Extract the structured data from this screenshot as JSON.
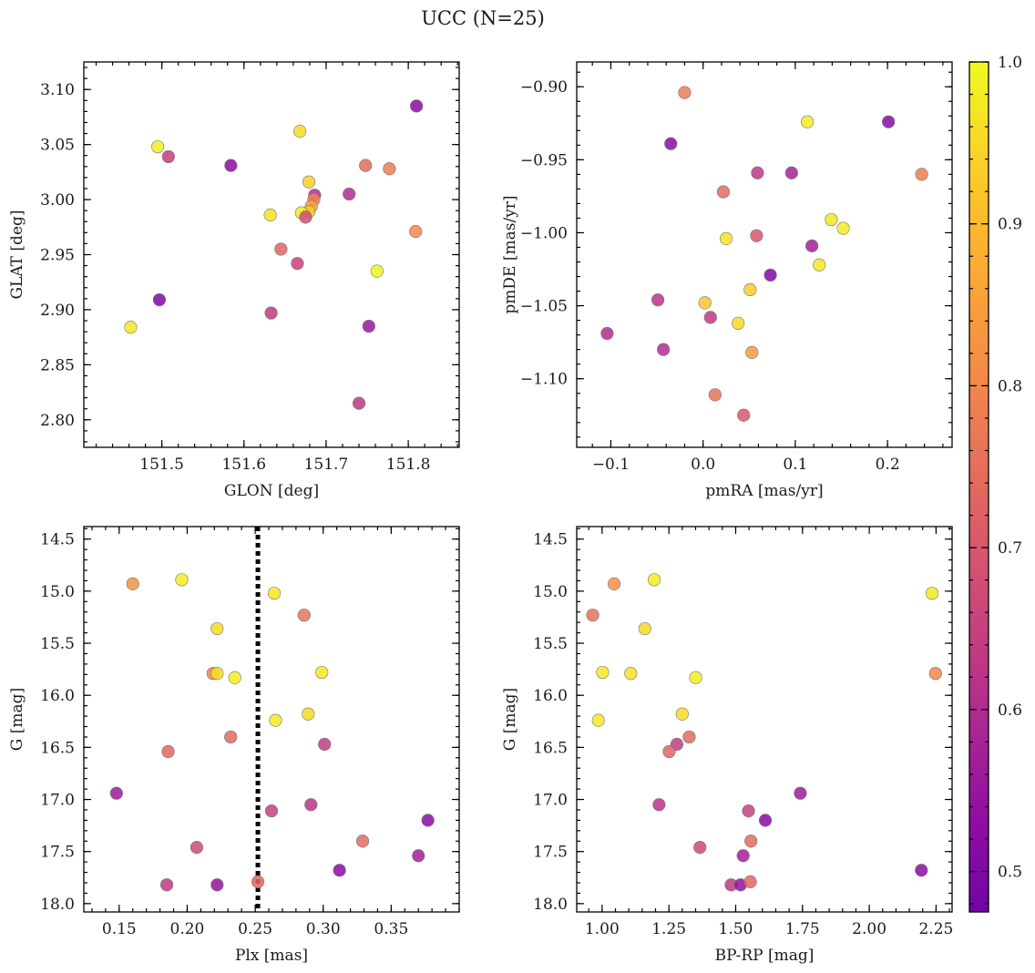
{
  "suptitle": "UCC (N=25)",
  "colorbar": {
    "min": 0.475,
    "max": 1.0,
    "ticks": [
      0.5,
      0.6,
      0.7,
      0.8,
      0.9,
      1.0
    ],
    "tick_labels": [
      "0.5",
      "0.6",
      "0.7",
      "0.8",
      "0.9",
      "1.0"
    ],
    "colormap": "plasma-like"
  },
  "chart_data": [
    {
      "type": "scatter",
      "id": "glon-glat",
      "xlabel": "GLON [deg]",
      "ylabel": "GLAT [deg]",
      "xlim": [
        151.405,
        151.862
      ],
      "ylim": [
        2.775,
        3.125
      ],
      "xticks": [
        151.5,
        151.6,
        151.7,
        151.8
      ],
      "xtick_labels": [
        "151.5",
        "151.6",
        "151.7",
        "151.8"
      ],
      "yticks": [
        2.8,
        2.85,
        2.9,
        2.95,
        3.0,
        3.05,
        3.1
      ],
      "ytick_labels": [
        "2.80",
        "2.85",
        "2.90",
        "2.95",
        "3.00",
        "3.05",
        "3.10"
      ],
      "points": [
        {
          "x": 151.81,
          "y": 3.085,
          "c": 0.52
        },
        {
          "x": 151.495,
          "y": 3.048,
          "c": 0.98
        },
        {
          "x": 151.508,
          "y": 3.039,
          "c": 0.64
        },
        {
          "x": 151.584,
          "y": 3.031,
          "c": 0.52
        },
        {
          "x": 151.668,
          "y": 3.062,
          "c": 0.95
        },
        {
          "x": 151.748,
          "y": 3.031,
          "c": 0.74
        },
        {
          "x": 151.777,
          "y": 3.028,
          "c": 0.78
        },
        {
          "x": 151.679,
          "y": 3.016,
          "c": 0.93
        },
        {
          "x": 151.686,
          "y": 3.004,
          "c": 0.6
        },
        {
          "x": 151.728,
          "y": 3.005,
          "c": 0.6
        },
        {
          "x": 151.685,
          "y": 3.0,
          "c": 0.8
        },
        {
          "x": 151.682,
          "y": 2.994,
          "c": 0.85
        },
        {
          "x": 151.679,
          "y": 2.989,
          "c": 0.92
        },
        {
          "x": 151.67,
          "y": 2.988,
          "c": 0.98
        },
        {
          "x": 151.675,
          "y": 2.984,
          "c": 0.68
        },
        {
          "x": 151.632,
          "y": 2.986,
          "c": 0.96
        },
        {
          "x": 151.809,
          "y": 2.971,
          "c": 0.8
        },
        {
          "x": 151.645,
          "y": 2.955,
          "c": 0.73
        },
        {
          "x": 151.665,
          "y": 2.942,
          "c": 0.65
        },
        {
          "x": 151.762,
          "y": 2.935,
          "c": 0.99
        },
        {
          "x": 151.497,
          "y": 2.909,
          "c": 0.5
        },
        {
          "x": 151.633,
          "y": 2.897,
          "c": 0.63
        },
        {
          "x": 151.752,
          "y": 2.885,
          "c": 0.55
        },
        {
          "x": 151.462,
          "y": 2.884,
          "c": 0.97
        },
        {
          "x": 151.74,
          "y": 2.815,
          "c": 0.63
        }
      ]
    },
    {
      "type": "scatter",
      "id": "pmra-pmde",
      "xlabel": "pmRA [mas/yr]",
      "ylabel": "pmDE [mas/yr]",
      "xlim": [
        -0.137,
        0.27
      ],
      "ylim": [
        -1.147,
        -0.883
      ],
      "xticks": [
        -0.1,
        0.0,
        0.1,
        0.2
      ],
      "xtick_labels": [
        "−0.1",
        "0.0",
        "0.1",
        "0.2"
      ],
      "yticks": [
        -1.1,
        -1.05,
        -1.0,
        -0.95,
        -0.9
      ],
      "ytick_labels": [
        "−1.10",
        "−1.05",
        "−1.00",
        "−0.95",
        "−0.90"
      ],
      "points": [
        {
          "x": -0.02,
          "y": -0.904,
          "c": 0.78
        },
        {
          "x": 0.113,
          "y": -0.924,
          "c": 0.98
        },
        {
          "x": 0.201,
          "y": -0.924,
          "c": 0.52
        },
        {
          "x": -0.035,
          "y": -0.939,
          "c": 0.52
        },
        {
          "x": 0.059,
          "y": -0.959,
          "c": 0.63
        },
        {
          "x": 0.096,
          "y": -0.959,
          "c": 0.58
        },
        {
          "x": 0.237,
          "y": -0.96,
          "c": 0.78
        },
        {
          "x": 0.022,
          "y": -0.972,
          "c": 0.74
        },
        {
          "x": 0.139,
          "y": -0.991,
          "c": 0.97
        },
        {
          "x": 0.152,
          "y": -0.997,
          "c": 0.98
        },
        {
          "x": 0.058,
          "y": -1.002,
          "c": 0.7
        },
        {
          "x": 0.025,
          "y": -1.004,
          "c": 0.96
        },
        {
          "x": 0.118,
          "y": -1.009,
          "c": 0.57
        },
        {
          "x": 0.126,
          "y": -1.022,
          "c": 0.97
        },
        {
          "x": 0.073,
          "y": -1.029,
          "c": 0.5
        },
        {
          "x": 0.051,
          "y": -1.039,
          "c": 0.93
        },
        {
          "x": -0.049,
          "y": -1.046,
          "c": 0.62
        },
        {
          "x": 0.002,
          "y": -1.048,
          "c": 0.92
        },
        {
          "x": 0.008,
          "y": -1.058,
          "c": 0.63
        },
        {
          "x": 0.038,
          "y": -1.062,
          "c": 0.95
        },
        {
          "x": -0.104,
          "y": -1.069,
          "c": 0.6
        },
        {
          "x": -0.043,
          "y": -1.08,
          "c": 0.6
        },
        {
          "x": 0.053,
          "y": -1.082,
          "c": 0.84
        },
        {
          "x": 0.013,
          "y": -1.111,
          "c": 0.76
        },
        {
          "x": 0.044,
          "y": -1.125,
          "c": 0.7
        }
      ]
    },
    {
      "type": "scatter",
      "id": "plx-g",
      "xlabel": "Plx [mas]",
      "ylabel": "G [mag]",
      "xlim": [
        0.124,
        0.4
      ],
      "ylim": [
        18.08,
        14.38
      ],
      "y_inverted": true,
      "xticks": [
        0.15,
        0.2,
        0.25,
        0.3,
        0.35
      ],
      "xtick_labels": [
        "0.15",
        "0.20",
        "0.25",
        "0.30",
        "0.35"
      ],
      "yticks": [
        14.5,
        15.0,
        15.5,
        16.0,
        16.5,
        17.0,
        17.5,
        18.0
      ],
      "ytick_labels": [
        "14.5",
        "15.0",
        "15.5",
        "16.0",
        "16.5",
        "17.0",
        "17.5",
        "18.0"
      ],
      "vline": {
        "x": 0.252,
        "style": "dotted"
      },
      "points": [
        {
          "x": 0.16,
          "y": 14.93,
          "c": 0.82
        },
        {
          "x": 0.196,
          "y": 14.89,
          "c": 0.98
        },
        {
          "x": 0.264,
          "y": 15.02,
          "c": 0.97
        },
        {
          "x": 0.286,
          "y": 15.23,
          "c": 0.76
        },
        {
          "x": 0.222,
          "y": 15.36,
          "c": 0.95
        },
        {
          "x": 0.219,
          "y": 15.79,
          "c": 0.8
        },
        {
          "x": 0.222,
          "y": 15.79,
          "c": 0.96
        },
        {
          "x": 0.235,
          "y": 15.83,
          "c": 0.98
        },
        {
          "x": 0.299,
          "y": 15.78,
          "c": 0.97
        },
        {
          "x": 0.289,
          "y": 16.18,
          "c": 0.95
        },
        {
          "x": 0.265,
          "y": 16.24,
          "c": 0.97
        },
        {
          "x": 0.232,
          "y": 16.4,
          "c": 0.74
        },
        {
          "x": 0.186,
          "y": 16.54,
          "c": 0.73
        },
        {
          "x": 0.301,
          "y": 16.47,
          "c": 0.64
        },
        {
          "x": 0.148,
          "y": 16.94,
          "c": 0.56
        },
        {
          "x": 0.291,
          "y": 17.05,
          "c": 0.62
        },
        {
          "x": 0.262,
          "y": 17.11,
          "c": 0.65
        },
        {
          "x": 0.377,
          "y": 17.2,
          "c": 0.52
        },
        {
          "x": 0.329,
          "y": 17.4,
          "c": 0.74
        },
        {
          "x": 0.207,
          "y": 17.46,
          "c": 0.67
        },
        {
          "x": 0.37,
          "y": 17.54,
          "c": 0.57
        },
        {
          "x": 0.312,
          "y": 17.68,
          "c": 0.52
        },
        {
          "x": 0.185,
          "y": 17.82,
          "c": 0.63
        },
        {
          "x": 0.222,
          "y": 17.82,
          "c": 0.54
        },
        {
          "x": 0.252,
          "y": 17.79,
          "c": 0.73
        }
      ]
    },
    {
      "type": "scatter",
      "id": "bprp-g",
      "xlabel": "BP-RP [mag]",
      "ylabel": "G [mag]",
      "xlim": [
        0.905,
        2.31
      ],
      "ylim": [
        18.08,
        14.38
      ],
      "y_inverted": true,
      "xticks": [
        1.0,
        1.25,
        1.5,
        1.75,
        2.0,
        2.25
      ],
      "xtick_labels": [
        "1.00",
        "1.25",
        "1.50",
        "1.75",
        "2.00",
        "2.25"
      ],
      "yticks": [
        14.5,
        15.0,
        15.5,
        16.0,
        16.5,
        17.0,
        17.5,
        18.0
      ],
      "ytick_labels": [
        "14.5",
        "15.0",
        "15.5",
        "16.0",
        "16.5",
        "17.0",
        "17.5",
        "18.0"
      ],
      "points": [
        {
          "x": 1.045,
          "y": 14.93,
          "c": 0.82
        },
        {
          "x": 1.195,
          "y": 14.89,
          "c": 0.98
        },
        {
          "x": 2.235,
          "y": 15.02,
          "c": 0.97
        },
        {
          "x": 0.965,
          "y": 15.23,
          "c": 0.76
        },
        {
          "x": 1.16,
          "y": 15.36,
          "c": 0.95
        },
        {
          "x": 1.002,
          "y": 15.78,
          "c": 0.97
        },
        {
          "x": 1.107,
          "y": 15.79,
          "c": 0.96
        },
        {
          "x": 1.35,
          "y": 15.83,
          "c": 0.98
        },
        {
          "x": 2.248,
          "y": 15.79,
          "c": 0.8
        },
        {
          "x": 1.3,
          "y": 16.18,
          "c": 0.95
        },
        {
          "x": 0.986,
          "y": 16.24,
          "c": 0.97
        },
        {
          "x": 1.326,
          "y": 16.4,
          "c": 0.74
        },
        {
          "x": 1.28,
          "y": 16.47,
          "c": 0.64
        },
        {
          "x": 1.251,
          "y": 16.54,
          "c": 0.73
        },
        {
          "x": 1.742,
          "y": 16.94,
          "c": 0.56
        },
        {
          "x": 1.213,
          "y": 17.05,
          "c": 0.62
        },
        {
          "x": 1.548,
          "y": 17.11,
          "c": 0.65
        },
        {
          "x": 1.611,
          "y": 17.2,
          "c": 0.52
        },
        {
          "x": 1.557,
          "y": 17.4,
          "c": 0.74
        },
        {
          "x": 1.366,
          "y": 17.46,
          "c": 0.67
        },
        {
          "x": 1.528,
          "y": 17.54,
          "c": 0.57
        },
        {
          "x": 2.195,
          "y": 17.68,
          "c": 0.52
        },
        {
          "x": 1.483,
          "y": 17.82,
          "c": 0.63
        },
        {
          "x": 1.518,
          "y": 17.82,
          "c": 0.54
        },
        {
          "x": 1.555,
          "y": 17.79,
          "c": 0.73
        }
      ]
    }
  ]
}
